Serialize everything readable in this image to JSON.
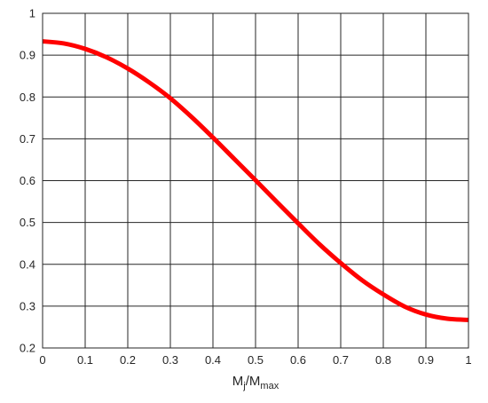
{
  "chart_data": {
    "type": "line",
    "title": "",
    "xlabel": {
      "main": "M",
      "sub1": "j",
      "sep": "/M",
      "sub2": "max"
    },
    "ylabel": "",
    "xlim": [
      0,
      1
    ],
    "ylim": [
      0.2,
      1
    ],
    "grid": true,
    "x_ticks": [
      "0",
      "0.1",
      "0.2",
      "0.3",
      "0.4",
      "0.5",
      "0.6",
      "0.7",
      "0.8",
      "0.9",
      "1"
    ],
    "y_ticks": [
      "0.2",
      "0.3",
      "0.4",
      "0.5",
      "0.6",
      "0.7",
      "0.8",
      "0.9",
      "1"
    ],
    "series": [
      {
        "color": "#ff0000",
        "x": [
          0,
          0.05,
          0.1,
          0.15,
          0.2,
          0.25,
          0.3,
          0.35,
          0.4,
          0.45,
          0.5,
          0.55,
          0.6,
          0.65,
          0.7,
          0.75,
          0.8,
          0.85,
          0.9,
          0.95,
          1
        ],
        "y": [
          0.933,
          0.928,
          0.915,
          0.895,
          0.868,
          0.835,
          0.797,
          0.752,
          0.703,
          0.652,
          0.601,
          0.549,
          0.498,
          0.448,
          0.403,
          0.362,
          0.328,
          0.299,
          0.28,
          0.27,
          0.267
        ]
      }
    ]
  }
}
